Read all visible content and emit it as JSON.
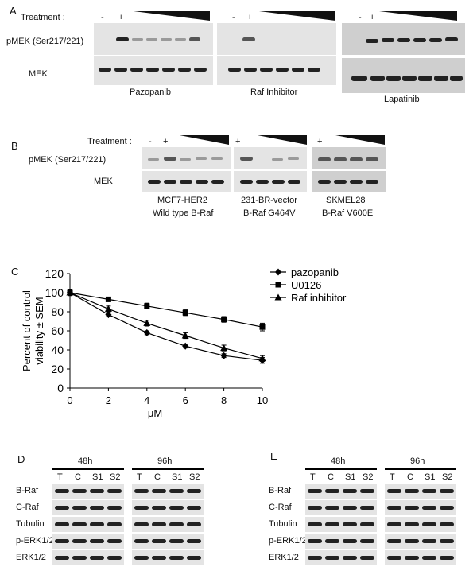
{
  "panelA": {
    "letter": "A",
    "treatment_label": "Treatment :",
    "signs": [
      "-",
      "+"
    ],
    "row_labels": [
      "pMEK (Ser217/221)",
      "MEK"
    ],
    "drugs": [
      "Pazopanib",
      "Raf Inhibitor",
      "Lapatinib"
    ]
  },
  "panelB": {
    "letter": "B",
    "treatment_label": "Treatment :",
    "signs": [
      "-",
      "+",
      "+",
      "+"
    ],
    "row_labels": [
      "pMEK (Ser217/221)",
      "MEK"
    ],
    "cells": [
      {
        "name": "MCF7-HER2",
        "genotype": "Wild type B-Raf"
      },
      {
        "name": "231-BR-vector",
        "genotype": "B-Raf G464V"
      },
      {
        "name": "SKMEL28",
        "genotype": "B-Raf V600E"
      }
    ]
  },
  "panelC": {
    "letter": "C",
    "chart_data": {
      "type": "line",
      "xlabel": "μM",
      "ylabel": "Percent of control viability ± SEM",
      "ylabel_lines": [
        "Percent of control",
        "viability ± SEM"
      ],
      "x": [
        0,
        2,
        4,
        6,
        8,
        10
      ],
      "xticks": [
        "0",
        "2",
        "4",
        "6",
        "8",
        "10"
      ],
      "yticks": [
        "0",
        "20",
        "40",
        "60",
        "80",
        "100",
        "120"
      ],
      "xlim": [
        0,
        10
      ],
      "ylim": [
        0,
        120
      ],
      "legend_position": "top-right",
      "series": [
        {
          "name": "pazopanib",
          "marker": "diamond",
          "values": [
            100,
            77,
            58,
            44,
            34,
            29
          ],
          "err": [
            3,
            2,
            2,
            2,
            2,
            3
          ]
        },
        {
          "name": "U0126",
          "marker": "square",
          "values": [
            100,
            93,
            86,
            79,
            72,
            64
          ],
          "err": [
            3,
            2,
            3,
            3,
            3,
            4
          ]
        },
        {
          "name": "Raf inhibitor",
          "marker": "triangle",
          "values": [
            100,
            83,
            68,
            55,
            42,
            31
          ],
          "err": [
            3,
            3,
            3,
            3,
            3,
            3
          ]
        }
      ]
    }
  },
  "panelD": {
    "letter": "D",
    "times": [
      "48h",
      "96h"
    ],
    "lanes": [
      "T",
      "C",
      "S1",
      "S2"
    ],
    "rows": [
      "B-Raf",
      "C-Raf",
      "Tubulin",
      "p-ERK1/2",
      "ERK1/2"
    ]
  },
  "panelE": {
    "letter": "E",
    "times": [
      "48h",
      "96h"
    ],
    "lanes": [
      "T",
      "C",
      "S1",
      "S2"
    ],
    "rows": [
      "B-Raf",
      "C-Raf",
      "Tubulin",
      "p-ERK1/2",
      "ERK1/2"
    ]
  }
}
